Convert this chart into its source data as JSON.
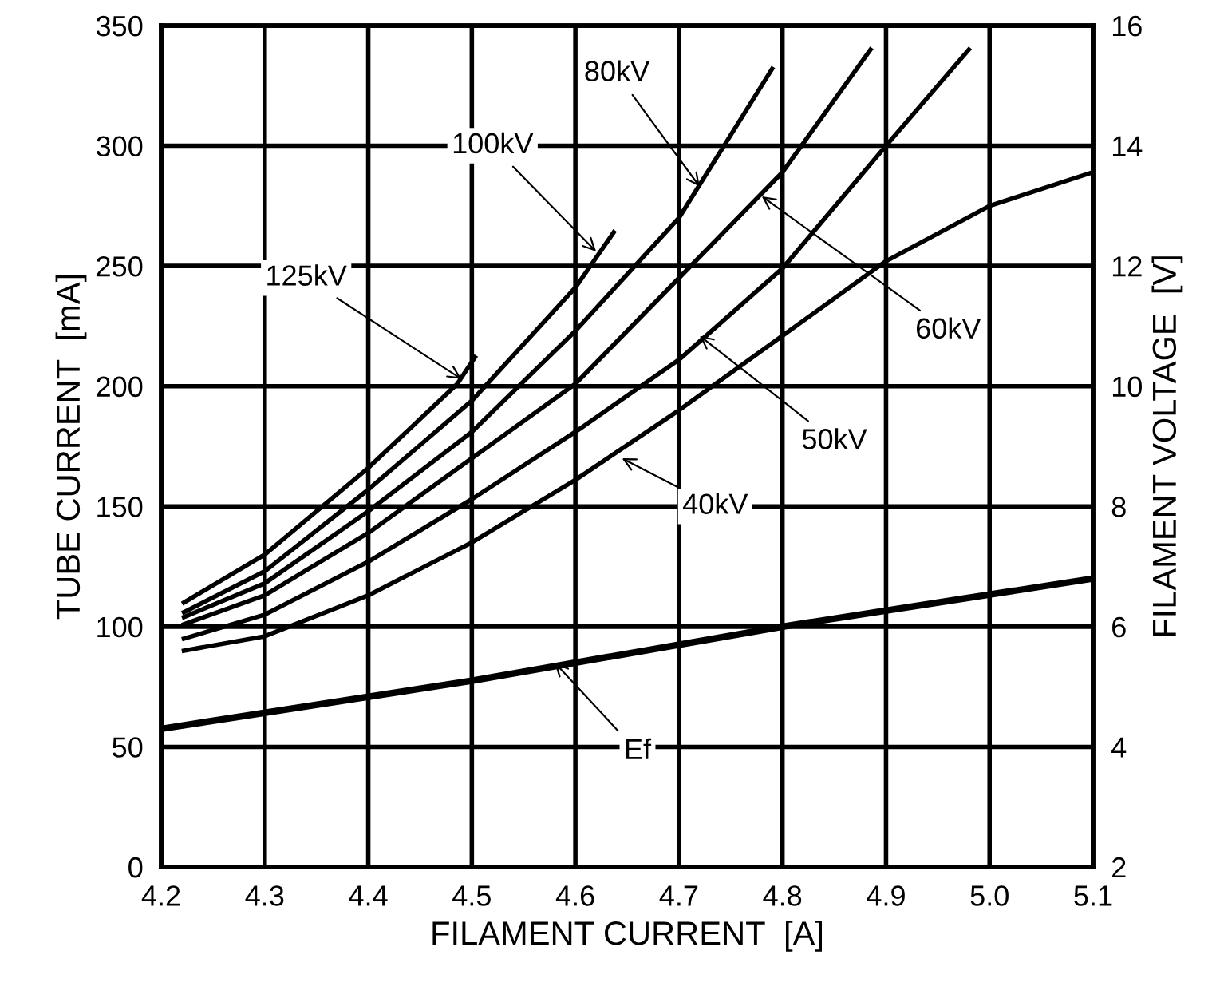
{
  "chart_data": {
    "type": "line",
    "xlabel": "FILAMENT CURRENT  [A]",
    "ylabel": "TUBE CURRENT  [mA]",
    "y2label": "FILAMENT VOLTAGE  [V]",
    "xlim": [
      4.2,
      5.1
    ],
    "xticks": [
      {
        "value": 4.2,
        "label": "4.2"
      },
      {
        "value": 4.3,
        "label": "4.3"
      },
      {
        "value": 4.4,
        "label": "4.4"
      },
      {
        "value": 4.5,
        "label": "4.5"
      },
      {
        "value": 4.6,
        "label": "4.6"
      },
      {
        "value": 4.7,
        "label": "4.7"
      },
      {
        "value": 4.8,
        "label": "4.8"
      },
      {
        "value": 4.9,
        "label": "4.9"
      },
      {
        "value": 5.0,
        "label": "5.0"
      },
      {
        "value": 5.1,
        "label": "5.1"
      }
    ],
    "ylim": [
      0,
      350
    ],
    "yticks": [
      0,
      50,
      100,
      150,
      200,
      250,
      300,
      350
    ],
    "y2lim": [
      2,
      16
    ],
    "y2ticks": [
      2,
      4,
      6,
      8,
      10,
      12,
      14,
      16
    ],
    "grid": true,
    "marker": "none",
    "line_style": "solid",
    "series": [
      {
        "color": "#000000",
        "x": [
          4.222,
          4.3,
          4.4,
          4.486,
          4.503
        ],
        "values": [
          110,
          130,
          166,
          201,
          212
        ]
      },
      {
        "color": "#000000",
        "x": [
          4.222,
          4.3,
          4.4,
          4.5,
          4.6,
          4.637
        ],
        "values": [
          106,
          123,
          157,
          194,
          241,
          264
        ]
      },
      {
        "color": "#000000",
        "x": [
          4.222,
          4.3,
          4.4,
          4.5,
          4.6,
          4.7,
          4.79
        ],
        "values": [
          104,
          118,
          148,
          181,
          223,
          270,
          332
        ]
      },
      {
        "color": "#000000",
        "x": [
          4.222,
          4.3,
          4.4,
          4.5,
          4.6,
          4.7,
          4.8,
          4.885
        ],
        "values": [
          101,
          113,
          139,
          170,
          201,
          245,
          289,
          340
        ]
      },
      {
        "color": "#000000",
        "x": [
          4.222,
          4.3,
          4.4,
          4.5,
          4.6,
          4.7,
          4.8,
          4.9,
          4.98
        ],
        "values": [
          95,
          105,
          127,
          153,
          181,
          211,
          249,
          300,
          340
        ]
      },
      {
        "color": "#000000",
        "x": [
          4.222,
          4.3,
          4.4,
          4.5,
          4.6,
          4.7,
          4.8,
          4.9,
          5.0,
          5.1
        ],
        "values": [
          90,
          96,
          113,
          135,
          161,
          190,
          221,
          252,
          275,
          289
        ]
      },
      {
        "color": "#000000",
        "axis": "y2",
        "x": [
          4.2,
          4.5,
          4.8,
          5.1
        ],
        "values": [
          4.3,
          5.1,
          6.0,
          6.8
        ]
      }
    ],
    "annotations": [
      {
        "text": "125kV",
        "x": 4.49,
        "y": 203
      },
      {
        "text": "100kV",
        "x": 4.62,
        "y": 256
      },
      {
        "text": "80kV",
        "x": 4.72,
        "y": 283
      },
      {
        "text": "60kV",
        "x": 4.78,
        "y": 279
      },
      {
        "text": "50kV",
        "x": 4.72,
        "y": 221
      },
      {
        "text": "40kV",
        "x": 4.645,
        "y": 170
      },
      {
        "text": "Ef",
        "x": 4.58,
        "y": 85
      }
    ]
  }
}
